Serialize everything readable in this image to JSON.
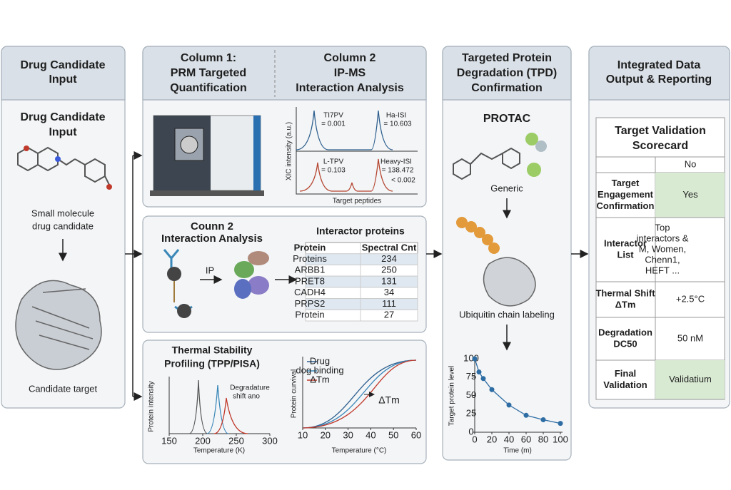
{
  "input": {
    "header": [
      "Drug Candidate",
      "Input"
    ],
    "title": [
      "Drug Candidate",
      "Input"
    ],
    "molecule_caption": [
      "Small molecule",
      "drug candidate"
    ],
    "target_caption": "Candidate target"
  },
  "prm_ipms": {
    "column1_header": [
      "Column 1:",
      "PRM Targeted",
      "Quantification"
    ],
    "column2_header": [
      "Column 2",
      "IP-MS",
      "Interaction Analysis"
    ],
    "xic": {
      "y_label": "XIC intensity (a.u.)",
      "x_label": "Target peptides",
      "annotations": [
        [
          "TI7PV",
          "= 0.001"
        ],
        [
          "Ha-ISI",
          "= 10.603"
        ],
        [
          "L-TPV",
          "= 0.103"
        ],
        [
          "Heavy-ISI",
          "= 138.472",
          "< 0.002"
        ]
      ]
    }
  },
  "interaction": {
    "title": [
      "Counn 2",
      "Interaction Analysis"
    ],
    "ip_label": "IP",
    "table": {
      "title": "Interactor proteins",
      "headers": [
        "Protein",
        "Spectral Cnt"
      ],
      "rows": [
        [
          "Proteins",
          234
        ],
        [
          "ARBB1",
          250
        ],
        [
          "PRET8",
          131
        ],
        [
          "CADH4",
          34
        ],
        [
          "PRPS2",
          111
        ],
        [
          "Protein",
          27
        ]
      ]
    }
  },
  "thermal": {
    "title": [
      "Thermal Stability",
      "Profiling (TPP/PISA)"
    ],
    "chart1": {
      "y_label": "Protein intensity",
      "x_label": "Temperature (K)",
      "xlim": [
        150,
        300
      ],
      "xticks": [
        150,
        200,
        250,
        300
      ],
      "annotation": [
        "Degradature",
        "shift ano"
      ]
    },
    "chart2": {
      "y_label": "Protein curvival",
      "x_label": "Temperature (°C)",
      "xlim": [
        10,
        60
      ],
      "xticks": [
        10,
        20,
        30,
        40,
        50,
        60
      ],
      "legend": [
        {
          "name": "Drug",
          "color": "#2b5d8c"
        },
        {
          "name": "dog binding",
          "color": "#3a87b8"
        },
        {
          "name": "ΔTm",
          "color": "#c0392b"
        }
      ],
      "annotation": "ΔTm"
    }
  },
  "tpd": {
    "header": [
      "Targeted Protein",
      "Degradation (TPD)",
      "Confirmation"
    ],
    "protac": "PROTAC",
    "generic": "Generic",
    "ubiquitin": "Ubiquitin chain labeling",
    "chart": {
      "type": "scatter",
      "y_label": "Target protein level",
      "x_label": "Time (m)",
      "x": [
        0,
        5,
        10,
        20,
        40,
        60,
        80,
        100
      ],
      "values": [
        100,
        82,
        73,
        58,
        37,
        23,
        17,
        12
      ],
      "color": "#2e6da4",
      "xlim": [
        0,
        100
      ],
      "ylim": [
        0,
        100
      ],
      "xticks": [
        0,
        20,
        40,
        60,
        80,
        100
      ],
      "yticks": [
        0,
        25,
        50,
        75,
        100
      ]
    }
  },
  "output": {
    "header": [
      "Integrated Data",
      "Output & Reporting"
    ],
    "scorecard_title": [
      "Target Validation",
      "Scorecard"
    ],
    "first_row_value": "No",
    "rows": [
      {
        "label": [
          "Target",
          "Engagement",
          "Confirmation"
        ],
        "value": [
          "Yes"
        ],
        "green": true
      },
      {
        "label": [
          "Interactor",
          "List"
        ],
        "value": [
          "Top",
          "interactors &",
          "M, Women,",
          "Chenn1,",
          "HEFT ..."
        ],
        "green": false
      },
      {
        "label": [
          "Thermal Shift",
          "ΔTm"
        ],
        "value": [
          "+2.5°C"
        ],
        "green": false
      },
      {
        "label": [
          "Degradation",
          "DC50"
        ],
        "value": [
          "50 nM"
        ],
        "green": false
      },
      {
        "label": [
          "Final",
          "Validation"
        ],
        "value": [
          "Validatium"
        ],
        "green": true
      }
    ]
  }
}
